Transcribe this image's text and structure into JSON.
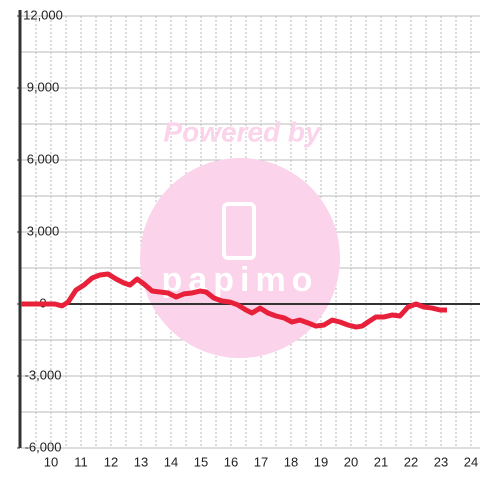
{
  "chart_data": {
    "type": "line",
    "watermark": "Powered by",
    "logo_text": "papimo",
    "x": [
      9,
      10.13,
      10.37,
      10.57,
      10.83,
      11.1,
      11.37,
      11.63,
      11.9,
      12.17,
      12.43,
      12.63,
      12.87,
      13.1,
      13.37,
      13.63,
      13.9,
      14.17,
      14.43,
      14.7,
      14.97,
      15.17,
      15.43,
      15.7,
      15.97,
      16.23,
      16.5,
      16.7,
      16.97,
      17.23,
      17.5,
      17.77,
      18.03,
      18.3,
      18.57,
      18.83,
      19.1,
      19.37,
      19.63,
      19.9,
      20.17,
      20.37,
      20.57,
      20.83,
      21.1,
      21.37,
      21.63,
      21.9,
      22.17,
      22.43,
      22.7,
      22.97,
      23.2
    ],
    "series": [
      {
        "color": "#e8203a",
        "values": [
          0,
          0,
          -80,
          80,
          580,
          790,
          1080,
          1210,
          1250,
          1040,
          875,
          790,
          1040,
          830,
          540,
          500,
          460,
          290,
          420,
          460,
          540,
          500,
          250,
          125,
          80,
          -40,
          -250,
          -375,
          -170,
          -375,
          -500,
          -580,
          -750,
          -670,
          -790,
          -920,
          -875,
          -670,
          -750,
          -875,
          -960,
          -920,
          -750,
          -540,
          -540,
          -460,
          -500,
          -125,
          0,
          -125,
          -170,
          -250,
          -250
        ]
      }
    ],
    "xlim": [
      9,
      24.3
    ],
    "xticks": [
      10,
      11,
      12,
      13,
      14,
      15,
      16,
      17,
      18,
      19,
      20,
      21,
      22,
      23,
      24
    ],
    "xgrid": [
      9.5,
      10,
      10.5,
      11,
      11.5,
      12,
      12.5,
      13,
      13.5,
      14,
      14.5,
      15,
      15.5,
      16,
      16.5,
      17,
      17.5,
      18,
      18.5,
      19,
      19.5,
      20,
      20.5,
      21,
      21.5,
      22,
      22.5,
      23,
      23.5,
      24
    ],
    "ylim": [
      -6000,
      12000
    ],
    "yticks": [
      {
        "value": -6000,
        "label": "-6,000"
      },
      {
        "value": -3000,
        "label": "-3,000"
      },
      0,
      {
        "value": 3000,
        "label": "3,000"
      },
      {
        "value": 6000,
        "label": "6,000"
      },
      {
        "value": 9000,
        "label": "9,000"
      },
      {
        "value": 12000,
        "label": "12,000"
      }
    ],
    "ygrid": [
      -6000,
      -4500,
      -3000,
      -1500,
      0,
      1500,
      3000,
      4500,
      6000,
      7500,
      9000,
      10500,
      12000
    ]
  }
}
